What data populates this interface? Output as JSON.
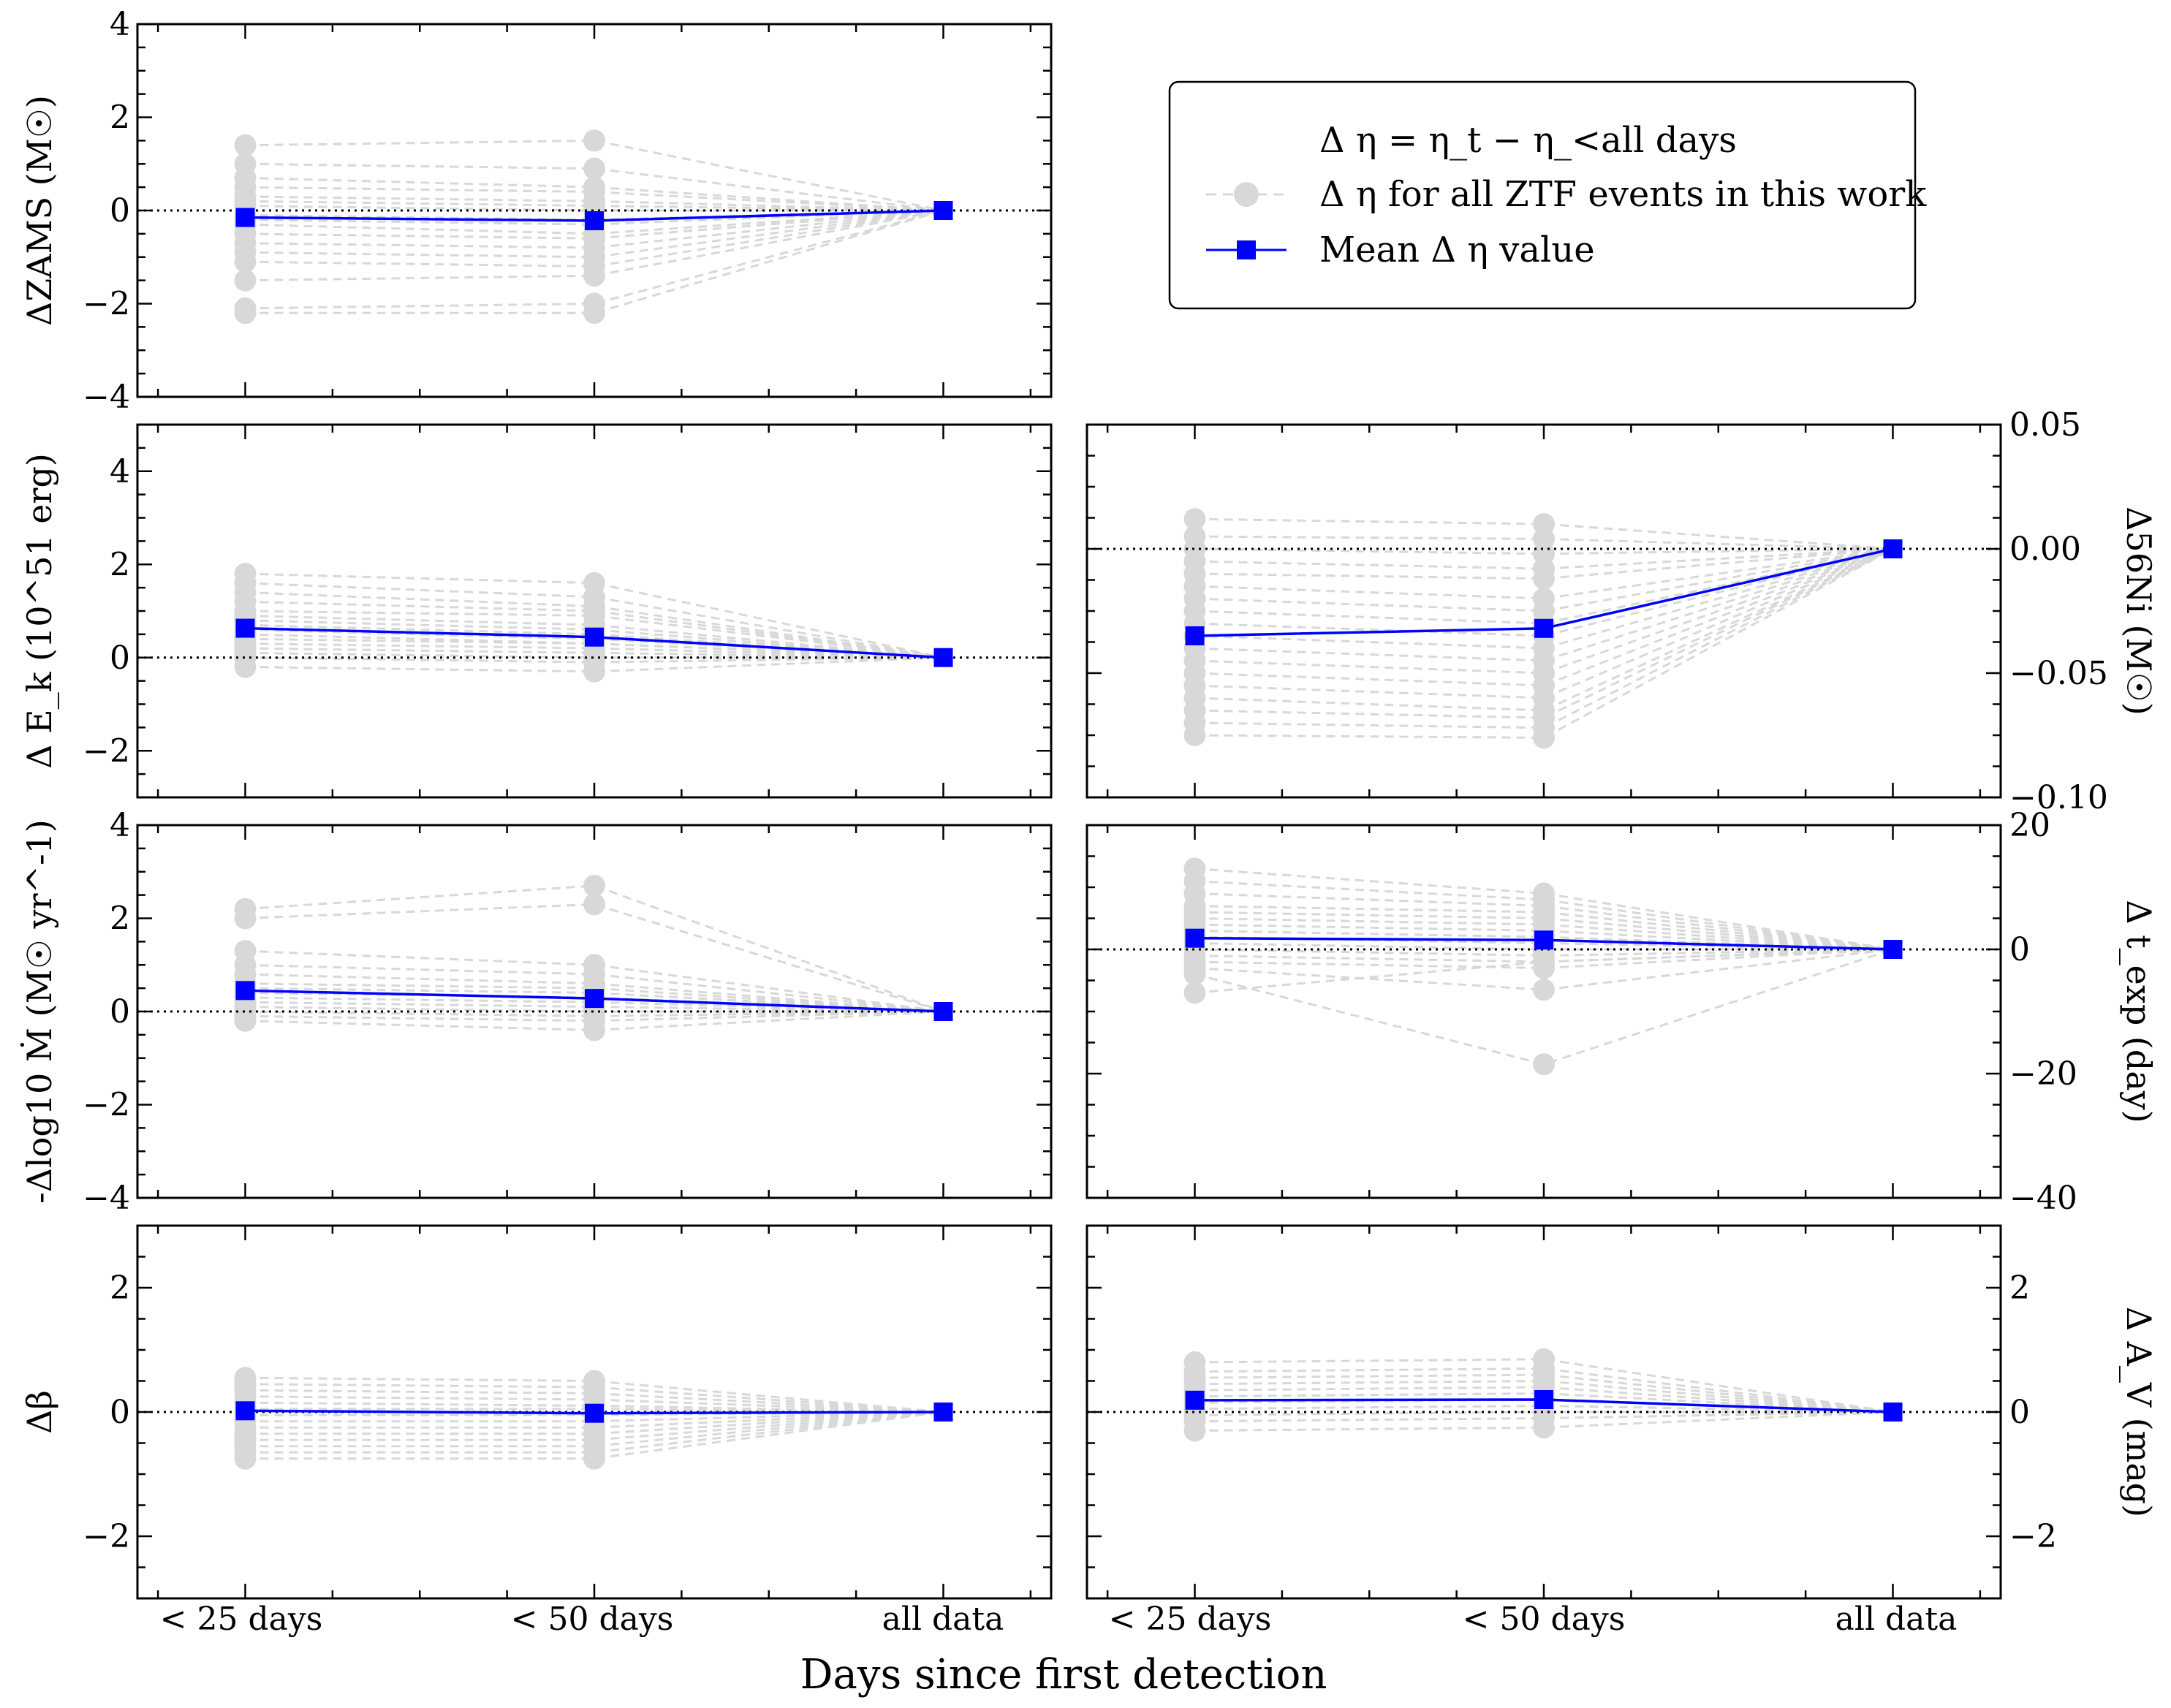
{
  "figure": {
    "xlabel": "Days since first detection",
    "categories": [
      "< 25 days",
      "< 50 days",
      "all data"
    ]
  },
  "legend": {
    "title": "Δ η = η_t − η_<all days",
    "items": [
      {
        "label": "Δ η for all ZTF events in this work",
        "style": "grey-dashed-circle"
      },
      {
        "label": "Mean Δ η value",
        "style": "blue-square-line"
      }
    ]
  },
  "colors": {
    "mean": "#0000ff",
    "individual": "#d8d8d8",
    "zero_line": "#000000"
  },
  "chart_data": [
    {
      "type": "line",
      "ylabel": "ΔZAMS (M☉)",
      "ylim": [
        -4,
        4
      ],
      "yticks": [
        -4,
        -2,
        0,
        2,
        4
      ],
      "tick_labels": [
        "−4",
        "−2",
        "0",
        "2",
        "4"
      ],
      "ytick_side": "left",
      "mean": {
        "name": "Mean Δ η value",
        "values": [
          -0.15,
          -0.22,
          0.0
        ]
      },
      "individual": [
        [
          1.4,
          1.5,
          0
        ],
        [
          1.0,
          0.9,
          0
        ],
        [
          0.7,
          0.5,
          0
        ],
        [
          0.5,
          0.4,
          0
        ],
        [
          0.3,
          0.2,
          0
        ],
        [
          0.2,
          0.1,
          0
        ],
        [
          0.1,
          0.0,
          0
        ],
        [
          -0.1,
          -0.2,
          0
        ],
        [
          -0.2,
          -0.3,
          0
        ],
        [
          -0.3,
          -0.5,
          0
        ],
        [
          -0.5,
          -0.6,
          0
        ],
        [
          -0.7,
          -0.8,
          0
        ],
        [
          -0.9,
          -1.0,
          0
        ],
        [
          -1.1,
          -1.2,
          0
        ],
        [
          -1.5,
          -1.4,
          0
        ],
        [
          -2.1,
          -2.0,
          0
        ],
        [
          -2.2,
          -2.2,
          0
        ]
      ]
    },
    {
      "type": "line",
      "ylabel": "Δ E_k (10^51 erg)",
      "ylim": [
        -3,
        5
      ],
      "yticks": [
        -2,
        0,
        2,
        4
      ],
      "tick_labels": [
        "−2",
        "0",
        "2",
        "4"
      ],
      "ytick_side": "left",
      "mean": {
        "name": "Mean Δ η value",
        "values": [
          0.63,
          0.44,
          0.0
        ]
      },
      "individual": [
        [
          1.8,
          1.6,
          0
        ],
        [
          1.6,
          1.3,
          0
        ],
        [
          1.4,
          1.1,
          0
        ],
        [
          1.2,
          1.0,
          0
        ],
        [
          1.0,
          0.9,
          0
        ],
        [
          0.9,
          0.7,
          0
        ],
        [
          0.8,
          0.6,
          0
        ],
        [
          0.7,
          0.5,
          0
        ],
        [
          0.6,
          0.4,
          0
        ],
        [
          0.5,
          0.3,
          0
        ],
        [
          0.4,
          0.3,
          0
        ],
        [
          0.3,
          0.2,
          0
        ],
        [
          0.2,
          0.1,
          0
        ],
        [
          0.1,
          0.0,
          0
        ],
        [
          0.0,
          -0.1,
          0
        ],
        [
          -0.2,
          -0.3,
          0
        ]
      ]
    },
    {
      "type": "line",
      "ylabel": "Δ56Ni (M☉)",
      "ylim": [
        -0.1,
        0.05
      ],
      "yticks": [
        -0.1,
        -0.05,
        0.0,
        0.05
      ],
      "tick_labels": [
        "−0.10",
        "−0.05",
        "0.00",
        "0.05"
      ],
      "ytick_side": "right",
      "mean": {
        "name": "Mean Δ η value",
        "values": [
          -0.035,
          -0.032,
          0.0
        ]
      },
      "individual": [
        [
          0.012,
          0.01,
          0
        ],
        [
          0.005,
          0.004,
          0
        ],
        [
          0.0,
          -0.002,
          0
        ],
        [
          -0.005,
          -0.008,
          0
        ],
        [
          -0.01,
          -0.012,
          0
        ],
        [
          -0.015,
          -0.02,
          0
        ],
        [
          -0.02,
          -0.025,
          0
        ],
        [
          -0.025,
          -0.03,
          0
        ],
        [
          -0.03,
          -0.035,
          0
        ],
        [
          -0.035,
          -0.04,
          0
        ],
        [
          -0.04,
          -0.045,
          0
        ],
        [
          -0.045,
          -0.05,
          0
        ],
        [
          -0.05,
          -0.055,
          0
        ],
        [
          -0.055,
          -0.06,
          0
        ],
        [
          -0.06,
          -0.065,
          0
        ],
        [
          -0.065,
          -0.068,
          0
        ],
        [
          -0.07,
          -0.072,
          0
        ],
        [
          -0.075,
          -0.076,
          0
        ]
      ]
    },
    {
      "type": "line",
      "ylabel": "-Δlog10 Ṁ (M☉ yr^-1)",
      "ylim": [
        -4,
        4
      ],
      "yticks": [
        -4,
        -2,
        0,
        2,
        4
      ],
      "tick_labels": [
        "−4",
        "−2",
        "0",
        "2",
        "4"
      ],
      "ytick_side": "left",
      "mean": {
        "name": "Mean Δ η value",
        "values": [
          0.45,
          0.28,
          0.0
        ]
      },
      "individual": [
        [
          2.2,
          2.7,
          0
        ],
        [
          2.0,
          2.3,
          0
        ],
        [
          1.3,
          1.0,
          0
        ],
        [
          1.0,
          0.8,
          0
        ],
        [
          0.8,
          0.6,
          0
        ],
        [
          0.6,
          0.5,
          0
        ],
        [
          0.5,
          0.4,
          0
        ],
        [
          0.4,
          0.3,
          0
        ],
        [
          0.3,
          0.2,
          0
        ],
        [
          0.2,
          0.1,
          0
        ],
        [
          0.1,
          0.0,
          0
        ],
        [
          0.0,
          -0.1,
          0
        ],
        [
          -0.1,
          -0.2,
          0
        ],
        [
          -0.2,
          -0.4,
          0
        ]
      ]
    },
    {
      "type": "line",
      "ylabel": "Δ t_exp (day)",
      "ylim": [
        -40,
        20
      ],
      "yticks": [
        -40,
        -20,
        0,
        20
      ],
      "tick_labels": [
        "−40",
        "−20",
        "0",
        "20"
      ],
      "ytick_side": "right",
      "mean": {
        "name": "Mean Δ η value",
        "values": [
          1.8,
          1.5,
          0.0
        ]
      },
      "individual": [
        [
          13,
          9,
          0
        ],
        [
          11,
          8,
          0
        ],
        [
          9,
          7,
          0
        ],
        [
          7,
          6,
          0
        ],
        [
          6,
          5,
          0
        ],
        [
          5,
          4,
          0
        ],
        [
          4,
          3,
          0
        ],
        [
          3,
          2,
          0
        ],
        [
          2,
          1,
          0
        ],
        [
          1,
          0,
          0
        ],
        [
          0,
          -1,
          0
        ],
        [
          -1,
          -2,
          0
        ],
        [
          -2,
          -3,
          0
        ],
        [
          -3,
          -6.5,
          0
        ],
        [
          -4,
          -18.5,
          0
        ],
        [
          -7,
          -2,
          0
        ]
      ]
    },
    {
      "type": "line",
      "ylabel": "Δβ",
      "ylim": [
        -3,
        3
      ],
      "yticks": [
        -2,
        0,
        2
      ],
      "tick_labels": [
        "−2",
        "0",
        "2"
      ],
      "ytick_side": "left",
      "mean": {
        "name": "Mean Δ η value",
        "values": [
          0.02,
          -0.02,
          0.0
        ]
      },
      "individual": [
        [
          0.55,
          0.5,
          0
        ],
        [
          0.45,
          0.4,
          0
        ],
        [
          0.35,
          0.3,
          0
        ],
        [
          0.25,
          0.2,
          0
        ],
        [
          0.15,
          0.1,
          0
        ],
        [
          0.05,
          0.05,
          0
        ],
        [
          -0.05,
          -0.05,
          0
        ],
        [
          -0.15,
          -0.15,
          0
        ],
        [
          -0.25,
          -0.25,
          0
        ],
        [
          -0.35,
          -0.35,
          0
        ],
        [
          -0.45,
          -0.45,
          0
        ],
        [
          -0.55,
          -0.55,
          0
        ],
        [
          -0.65,
          -0.65,
          0
        ],
        [
          -0.75,
          -0.75,
          0
        ]
      ]
    },
    {
      "type": "line",
      "ylabel": "Δ A_V (mag)",
      "ylim": [
        -3,
        3
      ],
      "yticks": [
        -2,
        0,
        2
      ],
      "tick_labels": [
        "−2",
        "0",
        "2"
      ],
      "ytick_side": "right",
      "mean": {
        "name": "Mean Δ η value",
        "values": [
          0.19,
          0.2,
          0.0
        ]
      },
      "individual": [
        [
          0.8,
          0.85,
          0
        ],
        [
          0.65,
          0.7,
          0
        ],
        [
          0.55,
          0.6,
          0
        ],
        [
          0.45,
          0.5,
          0
        ],
        [
          0.35,
          0.4,
          0
        ],
        [
          0.25,
          0.3,
          0
        ],
        [
          0.15,
          0.2,
          0
        ],
        [
          0.05,
          0.1,
          0
        ],
        [
          -0.05,
          0.0,
          0
        ],
        [
          -0.15,
          -0.1,
          0
        ],
        [
          -0.3,
          -0.25,
          0
        ]
      ]
    }
  ]
}
